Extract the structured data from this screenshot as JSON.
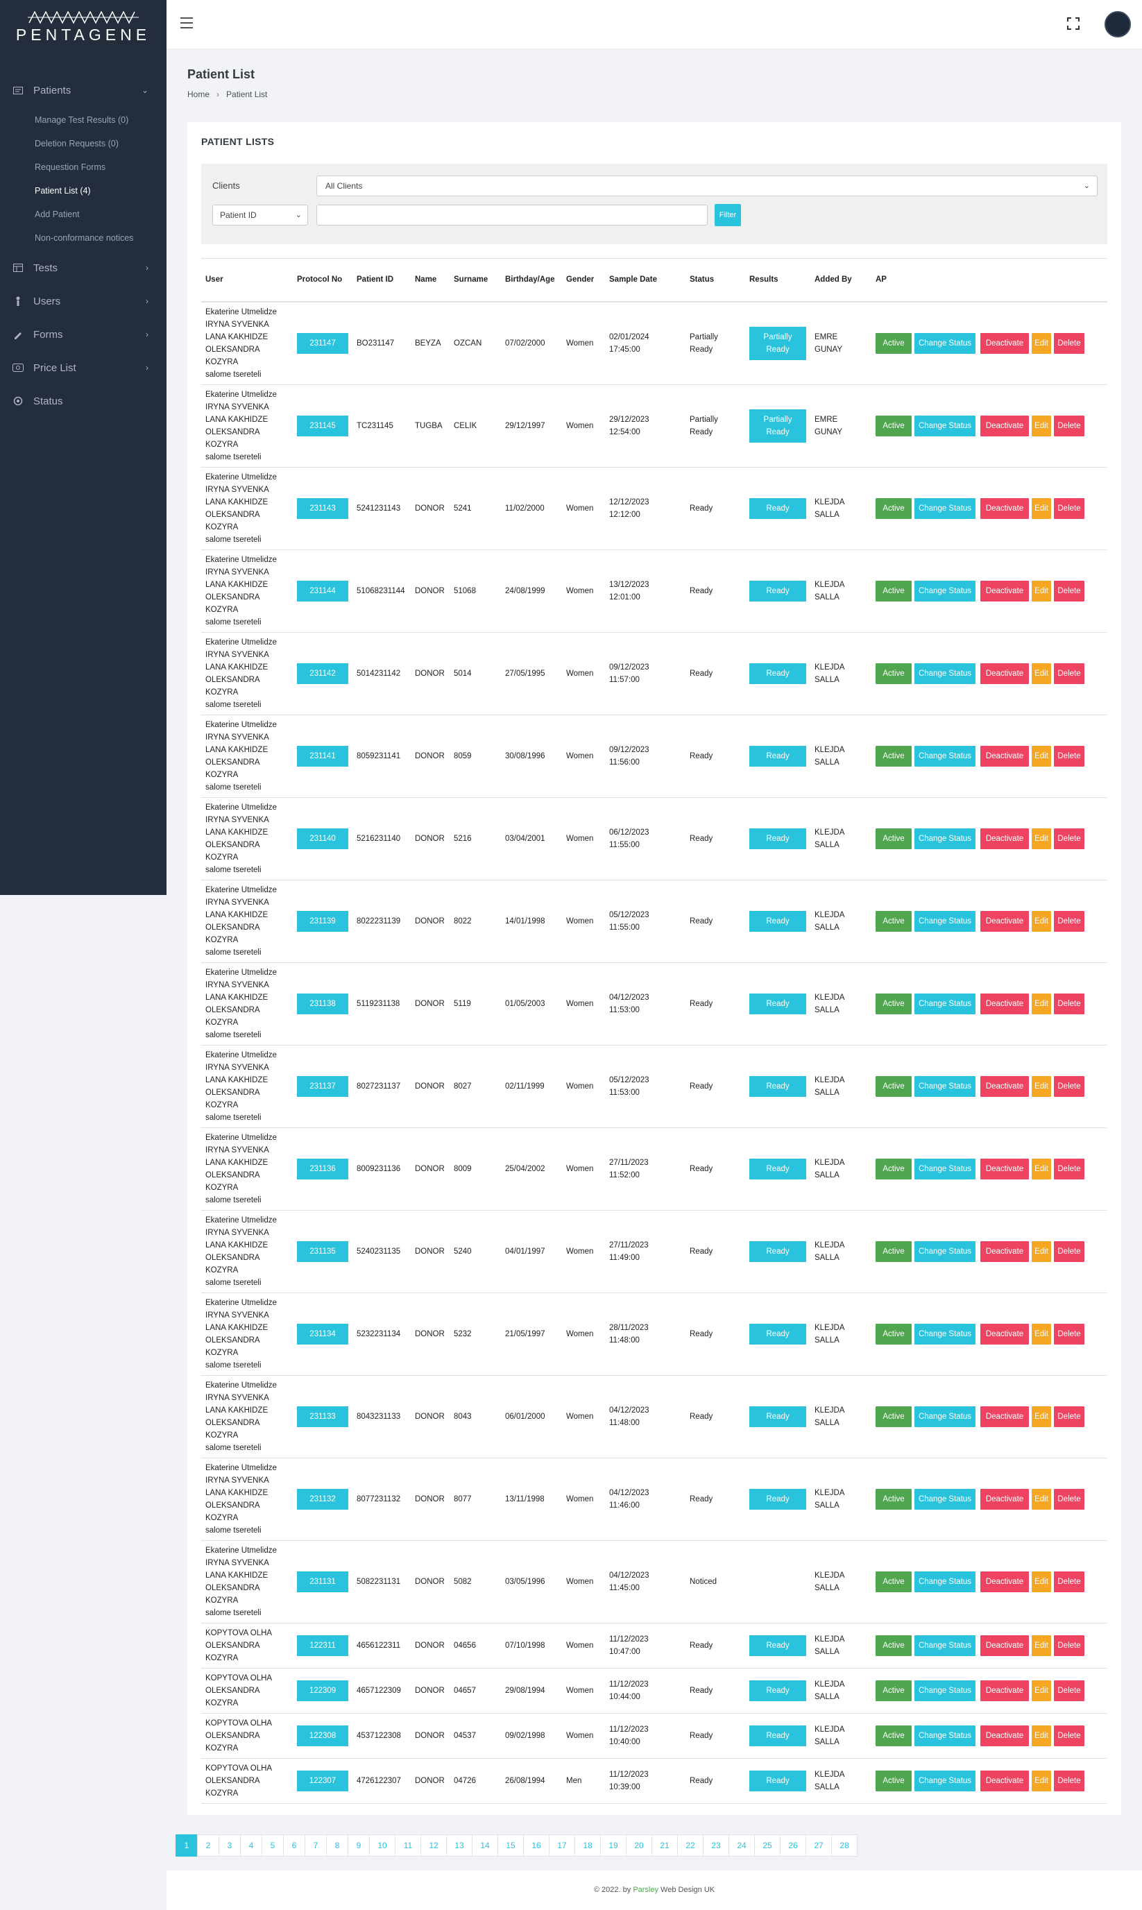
{
  "brand": {
    "logo_text": "PENTAGENE"
  },
  "sidebar": {
    "items": [
      {
        "label": "Patients",
        "icon": "patients-icon",
        "expanded": true
      },
      {
        "label": "Tests",
        "icon": "tests-icon"
      },
      {
        "label": "Users",
        "icon": "users-icon"
      },
      {
        "label": "Forms",
        "icon": "forms-icon"
      },
      {
        "label": "Price List",
        "icon": "price-list-icon"
      },
      {
        "label": "Status",
        "icon": "status-icon"
      }
    ],
    "patients_sub": [
      "Manage Test Results (0)",
      "Deletion Requests (0)",
      "Requestion Forms",
      "Patient List (4)",
      "Add Patient",
      "Non-conformance notices"
    ]
  },
  "header": {
    "page_title": "Patient List",
    "breadcrumb_home": "Home",
    "breadcrumb_current": "Patient List"
  },
  "card": {
    "title": "PATIENT LISTS"
  },
  "filters": {
    "clients_label": "Clients",
    "clients_value": "All Clients",
    "field_value": "Patient ID",
    "search_value": "",
    "filter_button": "Filter"
  },
  "table": {
    "headers": [
      "User",
      "Protocol No",
      "Patient ID",
      "Name",
      "Surname",
      "Birthday/Age",
      "Gender",
      "Sample Date",
      "Status",
      "Results",
      "Added By",
      "AP"
    ],
    "action_labels": {
      "active": "Active",
      "change_status": "Change Status",
      "deactivate": "Deactivate",
      "edit": "Edit",
      "delete": "Delete"
    },
    "user_group_a": [
      "Ekaterine Utmelidze",
      "IRYNA SYVENKA",
      "LANA KAKHIDZE",
      "OLEKSANDRA",
      "KOZYRA",
      "salome tsereteli"
    ],
    "user_group_b": [
      "KOPYTOVA OLHA",
      "OLEKSANDRA",
      "KOZYRA"
    ],
    "rows": [
      {
        "users": "a",
        "protocol": "231147",
        "patient_id": "BO231147",
        "name": "BEYZA",
        "surname": "OZCAN",
        "birthday": "07/02/2000",
        "gender": "Women",
        "sample_date": "02/01/2024",
        "sample_time": "17:45:00",
        "status": "Partially Ready",
        "results": "Partially Ready",
        "added_by": "EMRE GUNAY"
      },
      {
        "users": "a",
        "protocol": "231145",
        "patient_id": "TC231145",
        "name": "TUGBA",
        "surname": "CELIK",
        "birthday": "29/12/1997",
        "gender": "Women",
        "sample_date": "29/12/2023",
        "sample_time": "12:54:00",
        "status": "Partially Ready",
        "results": "Partially Ready",
        "added_by": "EMRE GUNAY"
      },
      {
        "users": "a",
        "protocol": "231143",
        "patient_id": "5241231143",
        "name": "DONOR",
        "surname": "5241",
        "birthday": "11/02/2000",
        "gender": "Women",
        "sample_date": "12/12/2023",
        "sample_time": "12:12:00",
        "status": "Ready",
        "results": "Ready",
        "added_by": "KLEJDA SALLA"
      },
      {
        "users": "a",
        "protocol": "231144",
        "patient_id": "51068231144",
        "name": "DONOR",
        "surname": "51068",
        "birthday": "24/08/1999",
        "gender": "Women",
        "sample_date": "13/12/2023",
        "sample_time": "12:01:00",
        "status": "Ready",
        "results": "Ready",
        "added_by": "KLEJDA SALLA"
      },
      {
        "users": "a",
        "protocol": "231142",
        "patient_id": "5014231142",
        "name": "DONOR",
        "surname": "5014",
        "birthday": "27/05/1995",
        "gender": "Women",
        "sample_date": "09/12/2023",
        "sample_time": "11:57:00",
        "status": "Ready",
        "results": "Ready",
        "added_by": "KLEJDA SALLA"
      },
      {
        "users": "a",
        "protocol": "231141",
        "patient_id": "8059231141",
        "name": "DONOR",
        "surname": "8059",
        "birthday": "30/08/1996",
        "gender": "Women",
        "sample_date": "09/12/2023",
        "sample_time": "11:56:00",
        "status": "Ready",
        "results": "Ready",
        "added_by": "KLEJDA SALLA"
      },
      {
        "users": "a",
        "protocol": "231140",
        "patient_id": "5216231140",
        "name": "DONOR",
        "surname": "5216",
        "birthday": "03/04/2001",
        "gender": "Women",
        "sample_date": "06/12/2023",
        "sample_time": "11:55:00",
        "status": "Ready",
        "results": "Ready",
        "added_by": "KLEJDA SALLA"
      },
      {
        "users": "a",
        "protocol": "231139",
        "patient_id": "8022231139",
        "name": "DONOR",
        "surname": "8022",
        "birthday": "14/01/1998",
        "gender": "Women",
        "sample_date": "05/12/2023",
        "sample_time": "11:55:00",
        "status": "Ready",
        "results": "Ready",
        "added_by": "KLEJDA SALLA"
      },
      {
        "users": "a",
        "protocol": "231138",
        "patient_id": "5119231138",
        "name": "DONOR",
        "surname": "5119",
        "birthday": "01/05/2003",
        "gender": "Women",
        "sample_date": "04/12/2023",
        "sample_time": "11:53:00",
        "status": "Ready",
        "results": "Ready",
        "added_by": "KLEJDA SALLA"
      },
      {
        "users": "a",
        "protocol": "231137",
        "patient_id": "8027231137",
        "name": "DONOR",
        "surname": "8027",
        "birthday": "02/11/1999",
        "gender": "Women",
        "sample_date": "05/12/2023",
        "sample_time": "11:53:00",
        "status": "Ready",
        "results": "Ready",
        "added_by": "KLEJDA SALLA"
      },
      {
        "users": "a",
        "protocol": "231136",
        "patient_id": "8009231136",
        "name": "DONOR",
        "surname": "8009",
        "birthday": "25/04/2002",
        "gender": "Women",
        "sample_date": "27/11/2023",
        "sample_time": "11:52:00",
        "status": "Ready",
        "results": "Ready",
        "added_by": "KLEJDA SALLA"
      },
      {
        "users": "a",
        "protocol": "231135",
        "patient_id": "5240231135",
        "name": "DONOR",
        "surname": "5240",
        "birthday": "04/01/1997",
        "gender": "Women",
        "sample_date": "27/11/2023",
        "sample_time": "11:49:00",
        "status": "Ready",
        "results": "Ready",
        "added_by": "KLEJDA SALLA"
      },
      {
        "users": "a",
        "protocol": "231134",
        "patient_id": "5232231134",
        "name": "DONOR",
        "surname": "5232",
        "birthday": "21/05/1997",
        "gender": "Women",
        "sample_date": "28/11/2023",
        "sample_time": "11:48:00",
        "status": "Ready",
        "results": "Ready",
        "added_by": "KLEJDA SALLA"
      },
      {
        "users": "a",
        "protocol": "231133",
        "patient_id": "8043231133",
        "name": "DONOR",
        "surname": "8043",
        "birthday": "06/01/2000",
        "gender": "Women",
        "sample_date": "04/12/2023",
        "sample_time": "11:48:00",
        "status": "Ready",
        "results": "Ready",
        "added_by": "KLEJDA SALLA"
      },
      {
        "users": "a",
        "protocol": "231132",
        "patient_id": "8077231132",
        "name": "DONOR",
        "surname": "8077",
        "birthday": "13/11/1998",
        "gender": "Women",
        "sample_date": "04/12/2023",
        "sample_time": "11:46:00",
        "status": "Ready",
        "results": "Ready",
        "added_by": "KLEJDA SALLA"
      },
      {
        "users": "a",
        "protocol": "231131",
        "patient_id": "5082231131",
        "name": "DONOR",
        "surname": "5082",
        "birthday": "03/05/1996",
        "gender": "Women",
        "sample_date": "04/12/2023",
        "sample_time": "11:45:00",
        "status": "Noticed",
        "results": "",
        "added_by": "KLEJDA SALLA"
      },
      {
        "users": "b",
        "protocol": "122311",
        "patient_id": "4656122311",
        "name": "DONOR",
        "surname": "04656",
        "birthday": "07/10/1998",
        "gender": "Women",
        "sample_date": "11/12/2023",
        "sample_time": "10:47:00",
        "status": "Ready",
        "results": "Ready",
        "added_by": "KLEJDA SALLA"
      },
      {
        "users": "b",
        "protocol": "122309",
        "patient_id": "4657122309",
        "name": "DONOR",
        "surname": "04657",
        "birthday": "29/08/1994",
        "gender": "Women",
        "sample_date": "11/12/2023",
        "sample_time": "10:44:00",
        "status": "Ready",
        "results": "Ready",
        "added_by": "KLEJDA SALLA"
      },
      {
        "users": "b",
        "protocol": "122308",
        "patient_id": "4537122308",
        "name": "DONOR",
        "surname": "04537",
        "birthday": "09/02/1998",
        "gender": "Women",
        "sample_date": "11/12/2023",
        "sample_time": "10:40:00",
        "status": "Ready",
        "results": "Ready",
        "added_by": "KLEJDA SALLA"
      },
      {
        "users": "b",
        "protocol": "122307",
        "patient_id": "4726122307",
        "name": "DONOR",
        "surname": "04726",
        "birthday": "26/08/1994",
        "gender": "Men",
        "sample_date": "11/12/2023",
        "sample_time": "10:39:00",
        "status": "Ready",
        "results": "Ready",
        "added_by": "KLEJDA SALLA"
      }
    ]
  },
  "pagination": {
    "pages": [
      "1",
      "2",
      "3",
      "4",
      "5",
      "6",
      "7",
      "8",
      "9",
      "10",
      "11",
      "12",
      "13",
      "14",
      "15",
      "16",
      "17",
      "18",
      "19",
      "20",
      "21",
      "22",
      "23",
      "24",
      "25",
      "26",
      "27",
      "28"
    ],
    "current": "1"
  },
  "footer": {
    "prefix": "© 2022. by ",
    "brand": "Parsley",
    "suffix": " Web Design UK"
  },
  "colors": {
    "sidebar": "#232d3b",
    "accent": "#2ac3dd",
    "success": "#4fa64f",
    "danger": "#ef4461",
    "warning": "#f5a623"
  }
}
